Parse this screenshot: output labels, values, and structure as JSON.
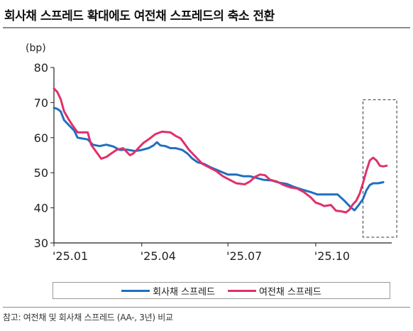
{
  "header": {
    "title": "회사채 스프레드 확대에도 여전채 스프레드의 축소 전환"
  },
  "footer": {
    "source": "참고: 여전채 및 회사채 스프레드 (AA-, 3년) 비교"
  },
  "colors": {
    "series_blue": "#1f6fbf",
    "series_pink": "#e0306a",
    "axis": "#222222",
    "highlight_box": "#333333"
  },
  "chart_data": {
    "type": "line",
    "unit_label": "(bp)",
    "ylim": [
      30,
      80
    ],
    "yticks": [
      30,
      40,
      50,
      60,
      70,
      80
    ],
    "xlim": [
      0,
      1
    ],
    "xticks": [
      {
        "label": "'25.01",
        "pos": 0.0
      },
      {
        "label": "'25.04",
        "pos": 0.26
      },
      {
        "label": "'25.07",
        "pos": 0.515
      },
      {
        "label": "'25.10",
        "pos": 0.775
      }
    ],
    "highlight_range_x": [
      0.915,
      1.015
    ],
    "highlight_range_y": [
      30,
      70
    ],
    "grid": false,
    "legend_position": "bottom",
    "series": [
      {
        "name": "회사채 스프레드",
        "color": "#1f6fbf",
        "points": [
          [
            0.0,
            68.5
          ],
          [
            0.01,
            68.2
          ],
          [
            0.02,
            67.5
          ],
          [
            0.03,
            65
          ],
          [
            0.045,
            63.5
          ],
          [
            0.06,
            62
          ],
          [
            0.07,
            60
          ],
          [
            0.1,
            59.5
          ],
          [
            0.115,
            58
          ],
          [
            0.135,
            57.6
          ],
          [
            0.155,
            58
          ],
          [
            0.175,
            57.5
          ],
          [
            0.195,
            56.5
          ],
          [
            0.215,
            56.6
          ],
          [
            0.24,
            56.2
          ],
          [
            0.26,
            56.5
          ],
          [
            0.28,
            57
          ],
          [
            0.295,
            57.8
          ],
          [
            0.305,
            58.7
          ],
          [
            0.315,
            57.8
          ],
          [
            0.33,
            57.6
          ],
          [
            0.345,
            57
          ],
          [
            0.36,
            57
          ],
          [
            0.38,
            56.5
          ],
          [
            0.395,
            55.5
          ],
          [
            0.41,
            54
          ],
          [
            0.425,
            53
          ],
          [
            0.445,
            52.5
          ],
          [
            0.465,
            51.5
          ],
          [
            0.49,
            50.5
          ],
          [
            0.515,
            49.5
          ],
          [
            0.54,
            49.5
          ],
          [
            0.56,
            49
          ],
          [
            0.58,
            49
          ],
          [
            0.6,
            48.5
          ],
          [
            0.62,
            48
          ],
          [
            0.645,
            47.8
          ],
          [
            0.665,
            47.2
          ],
          [
            0.69,
            46.8
          ],
          [
            0.71,
            46
          ],
          [
            0.735,
            45.2
          ],
          [
            0.76,
            44.5
          ],
          [
            0.78,
            43.8
          ],
          [
            0.84,
            43.8
          ],
          [
            0.86,
            42
          ],
          [
            0.88,
            40
          ],
          [
            0.89,
            39.3
          ],
          [
            0.9,
            40.5
          ],
          [
            0.915,
            42.5
          ],
          [
            0.925,
            45
          ],
          [
            0.935,
            46.5
          ],
          [
            0.945,
            47
          ],
          [
            0.96,
            47
          ],
          [
            0.975,
            47.3
          ]
        ]
      },
      {
        "name": "여전채 스프레드",
        "color": "#e0306a",
        "points": [
          [
            0.0,
            74
          ],
          [
            0.01,
            73
          ],
          [
            0.02,
            71
          ],
          [
            0.03,
            67.5
          ],
          [
            0.045,
            65
          ],
          [
            0.055,
            63.5
          ],
          [
            0.07,
            61.5
          ],
          [
            0.1,
            61.5
          ],
          [
            0.11,
            58
          ],
          [
            0.125,
            56
          ],
          [
            0.14,
            54
          ],
          [
            0.155,
            54.5
          ],
          [
            0.17,
            55.5
          ],
          [
            0.185,
            56.5
          ],
          [
            0.205,
            57
          ],
          [
            0.215,
            56
          ],
          [
            0.225,
            55
          ],
          [
            0.235,
            55.5
          ],
          [
            0.25,
            57
          ],
          [
            0.265,
            58.5
          ],
          [
            0.28,
            59.5
          ],
          [
            0.3,
            61
          ],
          [
            0.32,
            61.7
          ],
          [
            0.345,
            61.5
          ],
          [
            0.36,
            60.5
          ],
          [
            0.375,
            59.8
          ],
          [
            0.385,
            58.5
          ],
          [
            0.4,
            56.5
          ],
          [
            0.42,
            54.5
          ],
          [
            0.44,
            52.5
          ],
          [
            0.46,
            51.5
          ],
          [
            0.48,
            50.5
          ],
          [
            0.5,
            49
          ],
          [
            0.52,
            48
          ],
          [
            0.54,
            47
          ],
          [
            0.565,
            46.7
          ],
          [
            0.58,
            47.5
          ],
          [
            0.595,
            48.8
          ],
          [
            0.61,
            49.5
          ],
          [
            0.625,
            49.3
          ],
          [
            0.64,
            48
          ],
          [
            0.66,
            47.5
          ],
          [
            0.68,
            46.5
          ],
          [
            0.7,
            45.8
          ],
          [
            0.72,
            45.5
          ],
          [
            0.74,
            44.5
          ],
          [
            0.76,
            43
          ],
          [
            0.775,
            41.5
          ],
          [
            0.79,
            41
          ],
          [
            0.8,
            40.5
          ],
          [
            0.82,
            40.8
          ],
          [
            0.835,
            39.2
          ],
          [
            0.85,
            39
          ],
          [
            0.865,
            38.7
          ],
          [
            0.875,
            39.5
          ],
          [
            0.885,
            41
          ],
          [
            0.895,
            42
          ],
          [
            0.905,
            44
          ],
          [
            0.915,
            47
          ],
          [
            0.925,
            50.5
          ],
          [
            0.935,
            53.5
          ],
          [
            0.945,
            54.3
          ],
          [
            0.955,
            53.5
          ],
          [
            0.965,
            52
          ],
          [
            0.975,
            51.8
          ],
          [
            0.985,
            52
          ]
        ]
      }
    ]
  }
}
